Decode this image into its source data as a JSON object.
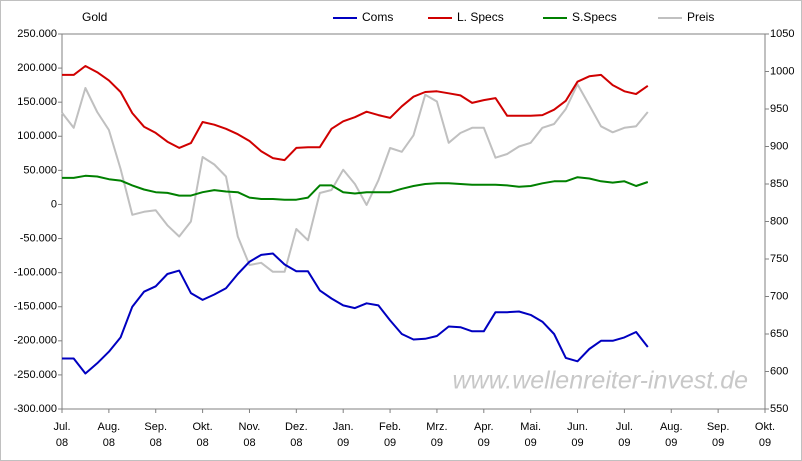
{
  "chart_data": {
    "type": "line",
    "title": "Gold",
    "watermark": "www.wellenreiter-invest.de",
    "x": [
      0,
      0.25,
      0.5,
      0.75,
      1,
      1.25,
      1.5,
      1.75,
      2,
      2.25,
      2.5,
      2.75,
      3,
      3.25,
      3.5,
      3.75,
      4,
      4.25,
      4.5,
      4.75,
      5,
      5.25,
      5.5,
      5.75,
      6,
      6.25,
      6.5,
      6.75,
      7,
      7.25,
      7.5,
      7.75,
      8,
      8.25,
      8.5,
      8.75,
      9,
      9.25,
      9.5,
      9.75,
      10,
      10.25,
      10.5,
      10.75,
      11,
      11.25,
      11.5,
      11.75,
      12,
      12.25,
      12.5
    ],
    "xlim": [
      0,
      15
    ],
    "xticks": [
      {
        "value": 0,
        "label": "Jul. 08"
      },
      {
        "value": 1,
        "label": "Aug. 08"
      },
      {
        "value": 2,
        "label": "Sep. 08"
      },
      {
        "value": 3,
        "label": "Okt. 08"
      },
      {
        "value": 4,
        "label": "Nov. 08"
      },
      {
        "value": 5,
        "label": "Dez. 08"
      },
      {
        "value": 6,
        "label": "Jan. 09"
      },
      {
        "value": 7,
        "label": "Feb. 09"
      },
      {
        "value": 8,
        "label": "Mrz. 09"
      },
      {
        "value": 9,
        "label": "Apr. 09"
      },
      {
        "value": 10,
        "label": "Mai. 09"
      },
      {
        "value": 11,
        "label": "Jun. 09"
      },
      {
        "value": 12,
        "label": "Jul. 09"
      },
      {
        "value": 13,
        "label": "Aug. 09"
      },
      {
        "value": 14,
        "label": "Sep. 09"
      },
      {
        "value": 15,
        "label": "Okt. 09"
      }
    ],
    "ylim": [
      -300000,
      250000
    ],
    "yticks": [
      {
        "value": -300000,
        "label": "-300.000"
      },
      {
        "value": -250000,
        "label": "-250.000"
      },
      {
        "value": -200000,
        "label": "-200.000"
      },
      {
        "value": -150000,
        "label": "-150.000"
      },
      {
        "value": -100000,
        "label": "-100.000"
      },
      {
        "value": -50000,
        "label": "-50.000"
      },
      0,
      {
        "value": 50000,
        "label": "50.000"
      },
      {
        "value": 100000,
        "label": "100.000"
      },
      {
        "value": 150000,
        "label": "150.000"
      },
      {
        "value": 200000,
        "label": "200.000"
      },
      {
        "value": 250000,
        "label": "250.000"
      }
    ],
    "y2lim": [
      550,
      1050
    ],
    "y2ticks": [
      550,
      600,
      650,
      700,
      750,
      800,
      850,
      900,
      950,
      1000,
      1050
    ],
    "series": [
      {
        "name": "Coms",
        "color": "#0000c0",
        "values": [
          -226000,
          -226000,
          -248000,
          -233000,
          -216000,
          -195000,
          -150000,
          -128000,
          -120000,
          -102000,
          -97000,
          -130000,
          -140000,
          -132000,
          -123000,
          -102000,
          -84000,
          -74000,
          -72000,
          -88000,
          -98000,
          -98000,
          -126000,
          -138000,
          -148000,
          -152000,
          -145000,
          -148000,
          -170000,
          -190000,
          -198000,
          -197000,
          -193000,
          -179000,
          -180000,
          -186000,
          -186000,
          -158000,
          -158000,
          -157000,
          -162000,
          -172000,
          -190000,
          -225000,
          -230000,
          -212000,
          -200000,
          -200000,
          -195000,
          -187000,
          -209000
        ]
      },
      {
        "name": "L. Specs",
        "color": "#d00000",
        "values": [
          190000,
          190000,
          203000,
          194000,
          182000,
          165000,
          134000,
          114000,
          105000,
          92000,
          83000,
          90000,
          121000,
          117000,
          111000,
          103000,
          93000,
          78000,
          68000,
          65000,
          83000,
          84000,
          84000,
          111000,
          122000,
          128000,
          136000,
          131000,
          127000,
          144000,
          158000,
          165000,
          166000,
          163000,
          160000,
          149000,
          153000,
          156000,
          130000,
          130000,
          130000,
          131000,
          139000,
          152000,
          180000,
          188000,
          190000,
          175000,
          166000,
          162000,
          174000
        ]
      },
      {
        "name": "S.Specs",
        "color": "#008000",
        "values": [
          39000,
          39000,
          42000,
          41000,
          37000,
          35000,
          28000,
          22000,
          18000,
          17000,
          13000,
          13000,
          18000,
          21000,
          19000,
          18000,
          10000,
          8000,
          8000,
          7000,
          7000,
          10000,
          28000,
          28000,
          18000,
          16000,
          18000,
          18000,
          18000,
          23000,
          27000,
          30000,
          31000,
          31000,
          30000,
          29000,
          29000,
          29000,
          28000,
          26000,
          27000,
          31000,
          34000,
          34000,
          40000,
          38000,
          34000,
          32000,
          34000,
          27000,
          33000
        ]
      },
      {
        "name": "Preis",
        "color": "#c0c0c0",
        "axis": "y2",
        "values": [
          945,
          925,
          978,
          946,
          922,
          870,
          809,
          813,
          815,
          795,
          780,
          800,
          886,
          876,
          860,
          780,
          742,
          745,
          733,
          733,
          790,
          775,
          838,
          842,
          869,
          850,
          822,
          855,
          898,
          893,
          915,
          969,
          960,
          905,
          918,
          925,
          925,
          885,
          890,
          900,
          905,
          925,
          930,
          950,
          983,
          955,
          927,
          919,
          925,
          927,
          946
        ]
      }
    ]
  }
}
